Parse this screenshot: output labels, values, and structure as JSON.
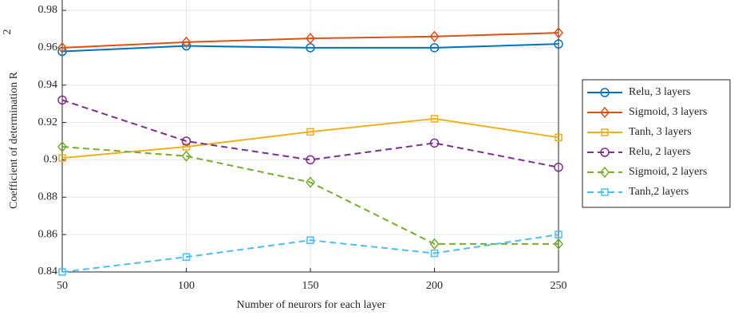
{
  "chart_data": {
    "type": "line",
    "xlabel": "Number of neurors for each layer",
    "ylabel": "Coefficient of determination R",
    "ylabel_superscript": "2",
    "x": [
      50,
      100,
      150,
      200,
      250
    ],
    "xlim": [
      50,
      250
    ],
    "xticks": [
      50,
      100,
      150,
      200,
      250
    ],
    "ylim": [
      0.84,
      0.98
    ],
    "yticks": [
      0.84,
      0.86,
      0.88,
      0.9,
      0.92,
      0.94,
      0.96,
      0.98
    ],
    "grid": true,
    "legend": "outside right",
    "series": [
      {
        "name": "Relu, 3 layers",
        "color": "#0072bd",
        "marker": "circle",
        "dash": false,
        "values": [
          0.958,
          0.961,
          0.96,
          0.96,
          0.962
        ]
      },
      {
        "name": "Sigmoid, 3 layers",
        "color": "#d95319",
        "marker": "diamond",
        "dash": false,
        "values": [
          0.96,
          0.963,
          0.965,
          0.966,
          0.968
        ]
      },
      {
        "name": "Tanh, 3 layers",
        "color": "#edb120",
        "marker": "square",
        "dash": false,
        "values": [
          0.901,
          0.907,
          0.915,
          0.922,
          0.912
        ]
      },
      {
        "name": "Relu, 2 layers",
        "color": "#7e2f8e",
        "marker": "circle",
        "dash": true,
        "values": [
          0.932,
          0.91,
          0.9,
          0.909,
          0.896
        ]
      },
      {
        "name": "Sigmoid, 2 layers",
        "color": "#77ac30",
        "marker": "diamond",
        "dash": true,
        "values": [
          0.907,
          0.902,
          0.888,
          0.855,
          0.855
        ]
      },
      {
        "name": "Tanh,2 layers",
        "color": "#4dbeee",
        "marker": "square",
        "dash": true,
        "values": [
          0.84,
          0.848,
          0.857,
          0.85,
          0.86
        ]
      }
    ]
  }
}
